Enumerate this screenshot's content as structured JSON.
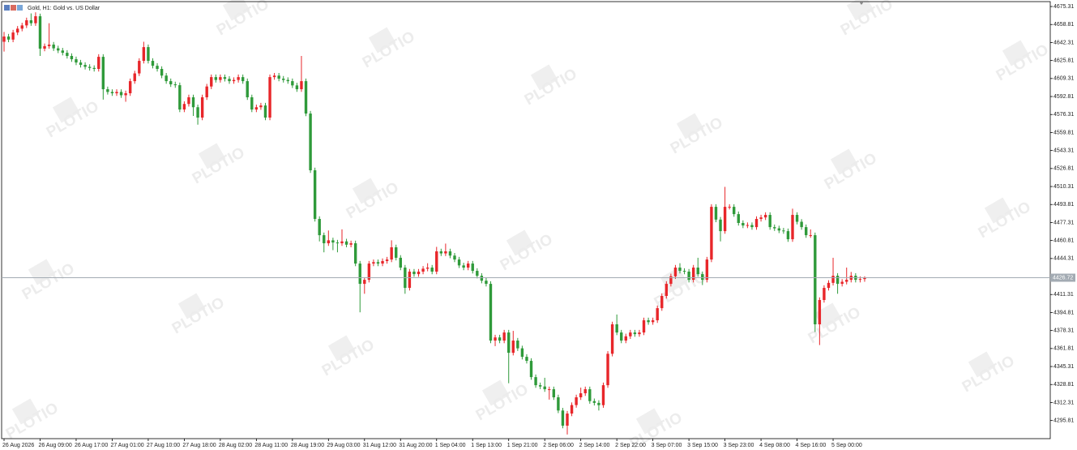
{
  "chart_data": {
    "type": "candlestick",
    "title": "Gold, H1:  Gold vs. US Dollar",
    "watermark": "PLOTIO",
    "categories": [
      "26 Aug 2026",
      null,
      null,
      null,
      null,
      null,
      null,
      null,
      "26 Aug 09:00",
      null,
      null,
      null,
      null,
      null,
      null,
      null,
      "26 Aug 17:00",
      null,
      null,
      null,
      null,
      null,
      null,
      null,
      "27 Aug 01:00",
      null,
      null,
      null,
      null,
      null,
      null,
      null,
      "27 Aug 10:00",
      null,
      null,
      null,
      null,
      null,
      null,
      null,
      "27 Aug 18:00",
      null,
      null,
      null,
      null,
      null,
      null,
      null,
      "28 Aug 02:00",
      null,
      null,
      null,
      null,
      null,
      null,
      null,
      "28 Aug 11:00",
      null,
      null,
      null,
      null,
      null,
      null,
      null,
      "28 Aug 19:00",
      null,
      null,
      null,
      null,
      null,
      null,
      null,
      "29 Aug 03:00",
      null,
      null,
      null,
      null,
      null,
      null,
      null,
      "31 Aug 12:00",
      null,
      null,
      null,
      null,
      null,
      null,
      null,
      "31 Aug 20:00",
      null,
      null,
      null,
      null,
      null,
      null,
      null,
      "1 Sep 04:00",
      null,
      null,
      null,
      null,
      null,
      null,
      null,
      "1 Sep 13:00",
      null,
      null,
      null,
      null,
      null,
      null,
      null,
      "1 Sep 21:00",
      null,
      null,
      null,
      null,
      null,
      null,
      null,
      "2 Sep 06:00",
      null,
      null,
      null,
      null,
      null,
      null,
      null,
      "2 Sep 14:00",
      null,
      null,
      null,
      null,
      null,
      null,
      null,
      "2 Sep 22:00",
      null,
      null,
      null,
      null,
      null,
      null,
      null,
      "3 Sep 07:00",
      null,
      null,
      null,
      null,
      null,
      null,
      null,
      "3 Sep 15:00",
      null,
      null,
      null,
      null,
      null,
      null,
      null,
      "3 Sep 23:00",
      null,
      null,
      null,
      null,
      null,
      null,
      null,
      "4 Sep 08:00",
      null,
      null,
      null,
      null,
      null,
      null,
      null,
      "4 Sep 16:00",
      null,
      null,
      null,
      null,
      null,
      null,
      null,
      "5 Sep 00:00",
      null,
      null,
      null,
      null,
      null,
      null,
      null
    ],
    "open": [
      4643,
      4647.8,
      4645,
      4651.5,
      4655,
      4658,
      4662.7,
      4660,
      4666.4,
      4636.7,
      4639,
      4640.4,
      4637,
      4635,
      4632.9,
      4630,
      4627,
      4624,
      4621.8,
      4620,
      4619,
      4618.1,
      4629.2,
      4599.5,
      4597,
      4595.8,
      4597,
      4594,
      4595.8,
      4606.9,
      4614,
      4625.5,
      4638.1,
      4625.5,
      4621,
      4618.1,
      4612,
      4606.9,
      4604,
      4603.2,
      4580.9,
      4586,
      4592.1,
      4583,
      4573.5,
      4592.1,
      4602,
      4610.6,
      4608,
      4610.6,
      4609,
      4606.9,
      4608,
      4610.6,
      4606.9,
      4592.1,
      4580.9,
      4583,
      4584.6,
      4573.5,
      4610.6,
      4612,
      4609.2,
      4608,
      4606.9,
      4603,
      4599.5,
      4606.9,
      4577.2,
      4525.2,
      4480.6,
      4465.7,
      4458.3,
      4461,
      4459,
      4458.3,
      4460,
      4457,
      4458.3,
      4439.7,
      4421.1,
      4424.8,
      4439.7,
      4441,
      4439.7,
      4442,
      4443.4,
      4454.6,
      4445,
      4436,
      4417.4,
      4432.3,
      4430,
      4432.3,
      4435,
      4436,
      4432.3,
      4450.9,
      4449,
      4450.9,
      4447,
      4443.4,
      4438,
      4436,
      4439.7,
      4433,
      4428.5,
      4424,
      4421.1,
      4369.1,
      4372,
      4369.1,
      4376.5,
      4357.9,
      4369.1,
      4362,
      4354.2,
      4350.5,
      4335.6,
      4328.2,
      4327,
      4324.5,
      4324.5,
      4317.1,
      4305,
      4291.1,
      4302.2,
      4310,
      4317.1,
      4320.8,
      4324.5,
      4313.6,
      4312,
      4309.9,
      4328.2,
      4357,
      4384,
      4376.5,
      4369.1,
      4373,
      4376.5,
      4375,
      4376.5,
      4387.7,
      4386,
      4387.7,
      4398.8,
      4410,
      4421.1,
      4428,
      4436,
      4433,
      4432.3,
      4424.8,
      4436,
      4430,
      4424.8,
      4443.4,
      4491.7,
      4480,
      4469.4,
      4491.7,
      4491.7,
      4485,
      4476.9,
      4474.6,
      4475,
      4473.1,
      4480.6,
      4482,
      4484.3,
      4473.1,
      4472,
      4470,
      4469.4,
      4462,
      4484.3,
      4478,
      4473.1,
      4465.7,
      4465.7,
      4384,
      4406.3,
      4417.4,
      4422,
      4428.5,
      4421.1,
      4423,
      4424.8,
      4428.5,
      4424.8,
      4425.5
    ],
    "high": [
      4652,
      4650.2,
      4653.9,
      4657.4,
      4660.4,
      4665.1,
      4669,
      4670,
      4668.8,
      4641.4,
      4660,
      4642.8,
      4639.4,
      4637.4,
      4635.3,
      4632.4,
      4629.4,
      4626.4,
      4624.2,
      4622.4,
      4621.4,
      4631.6,
      4631.6,
      4601.9,
      4599.4,
      4599.4,
      4599.4,
      4598.2,
      4609.3,
      4616.4,
      4627.9,
      4643,
      4640.5,
      4627.9,
      4623.4,
      4620.5,
      4614.4,
      4609.3,
      4606.4,
      4605.6,
      4588.4,
      4594.5,
      4594.5,
      4585.4,
      4594.5,
      4604.4,
      4613,
      4613,
      4613,
      4613,
      4611.4,
      4610.4,
      4613,
      4613,
      4609.3,
      4594.5,
      4585.4,
      4587,
      4587,
      4613,
      4614.4,
      4614.4,
      4611.6,
      4610.4,
      4609.3,
      4605.4,
      4630,
      4609.3,
      4579.6,
      4527.6,
      4483,
      4468.1,
      4470,
      4463.4,
      4461.4,
      4471,
      4462.4,
      4460.7,
      4460.7,
      4442.1,
      4427.2,
      4442.1,
      4443.4,
      4443.4,
      4444.4,
      4445.8,
      4461,
      4457,
      4447.4,
      4438.4,
      4434.7,
      4434.7,
      4434.7,
      4437.4,
      4440,
      4438.4,
      4455,
      4453.3,
      4458,
      4453.3,
      4449.4,
      4445.8,
      4440.4,
      4442.1,
      4442.1,
      4435.4,
      4430.9,
      4426.4,
      4423.5,
      4374.4,
      4374.4,
      4378.9,
      4378.9,
      4378,
      4371.5,
      4364.4,
      4356.6,
      4352.9,
      4338,
      4330.6,
      4335,
      4326.9,
      4326.9,
      4319.5,
      4307.4,
      4304.6,
      4312.4,
      4319.5,
      4326,
      4326.9,
      4326.9,
      4316,
      4314.4,
      4330.6,
      4359.4,
      4386.4,
      4393,
      4378.9,
      4375.4,
      4378.9,
      4378.9,
      4378.9,
      4390.1,
      4390.1,
      4390.1,
      4401.2,
      4412.4,
      4423.5,
      4430.4,
      4438.4,
      4440,
      4435.4,
      4434.7,
      4438.4,
      4445,
      4432.4,
      4445.8,
      4494.1,
      4494.1,
      4482.4,
      4510,
      4494.1,
      4494.1,
      4487.4,
      4479.3,
      4477.4,
      4477.4,
      4483,
      4484.4,
      4486.7,
      4486.7,
      4475.5,
      4474.4,
      4472.4,
      4471.8,
      4490,
      4486.7,
      4480.4,
      4475.5,
      4471,
      4468.1,
      4408.7,
      4419.8,
      4424.4,
      4445,
      4430.9,
      4425.4,
      4436,
      4432,
      4430.9,
      4427.9,
      4428
    ],
    "low": [
      4634,
      4642.6,
      4642.6,
      4649.1,
      4652.6,
      4655.6,
      4657.6,
      4657.6,
      4630,
      4634.3,
      4636.6,
      4634.6,
      4632.6,
      4630.5,
      4627.6,
      4624.6,
      4621.6,
      4619.4,
      4617.6,
      4616.6,
      4615.7,
      4615.7,
      4590,
      4594.6,
      4593.4,
      4593.4,
      4591.6,
      4588,
      4593.4,
      4604.5,
      4611.6,
      4623.1,
      4623.1,
      4618.6,
      4615.7,
      4609.6,
      4604.5,
      4601.6,
      4600.8,
      4578.5,
      4578.5,
      4583.6,
      4575,
      4567,
      4571.1,
      4589.7,
      4599.6,
      4605.6,
      4605.6,
      4606.6,
      4604.5,
      4604.5,
      4605.6,
      4604.5,
      4589.7,
      4578.5,
      4578.5,
      4580.6,
      4571.1,
      4571.1,
      4608.2,
      4606.8,
      4605.6,
      4604.5,
      4600.6,
      4597.1,
      4597.1,
      4574.8,
      4522.8,
      4478.2,
      4460,
      4450,
      4455.9,
      4452,
      4450,
      4455.9,
      4454.6,
      4454.6,
      4437.3,
      4395,
      4412,
      4422.4,
      4437.3,
      4437.3,
      4437.3,
      4439.6,
      4441,
      4442.6,
      4433.6,
      4412,
      4415,
      4427.6,
      4427.6,
      4429.9,
      4432.6,
      4429.9,
      4429.9,
      4446.6,
      4446.6,
      4444.6,
      4441,
      4435.6,
      4433.6,
      4433.6,
      4430.6,
      4426.1,
      4421.6,
      4418.7,
      4366.7,
      4364,
      4366.7,
      4366.7,
      4330,
      4355.5,
      4359.6,
      4351.8,
      4348.1,
      4333.2,
      4325.8,
      4324.6,
      4322.1,
      4315,
      4314.7,
      4302.6,
      4288.7,
      4283,
      4299.8,
      4307.6,
      4314.7,
      4318.4,
      4311.2,
      4309.6,
      4305,
      4307.5,
      4325.8,
      4354.6,
      4374.1,
      4366.7,
      4366.7,
      4370.6,
      4372.6,
      4372.6,
      4374.1,
      4383.6,
      4383.6,
      4385.3,
      4396.4,
      4407.6,
      4418.7,
      4425.6,
      4430.6,
      4429.9,
      4422.4,
      4422.4,
      4427.6,
      4420,
      4422.4,
      4441,
      4477.6,
      4460,
      4467,
      4489.3,
      4482.6,
      4474.5,
      4472.2,
      4472.2,
      4470.7,
      4470.7,
      4478.2,
      4479.6,
      4470.7,
      4469.6,
      4467.6,
      4467,
      4459.6,
      4459.6,
      4475.6,
      4470.7,
      4463.3,
      4463.3,
      4377,
      4365,
      4403.9,
      4415,
      4419.6,
      4412,
      4418.7,
      4420.6,
      4422.4,
      4422.4,
      4422.4,
      4423
    ],
    "close": [
      4647.8,
      4645,
      4651.5,
      4655,
      4658,
      4662.7,
      4660,
      4666.4,
      4636.7,
      4639,
      4640.4,
      4637,
      4635,
      4632.9,
      4630,
      4627,
      4624,
      4621.8,
      4620,
      4619,
      4618.1,
      4629.2,
      4599.5,
      4597,
      4595.8,
      4597,
      4594,
      4595.8,
      4606.9,
      4614,
      4625.5,
      4638.1,
      4625.5,
      4621,
      4618.1,
      4612,
      4606.9,
      4604,
      4603.2,
      4580.9,
      4586,
      4592.1,
      4583,
      4573.5,
      4592.1,
      4602,
      4610.6,
      4608,
      4610.6,
      4609,
      4606.9,
      4608,
      4610.6,
      4606.9,
      4592.1,
      4580.9,
      4583,
      4584.6,
      4573.5,
      4610.6,
      4612,
      4609.2,
      4608,
      4606.9,
      4603,
      4599.5,
      4606.9,
      4577.2,
      4525.2,
      4480.6,
      4465.7,
      4458.3,
      4461,
      4459,
      4458.3,
      4460,
      4457,
      4458.3,
      4439.7,
      4421.1,
      4424.8,
      4439.7,
      4441,
      4439.7,
      4442,
      4443.4,
      4454.6,
      4445,
      4436,
      4417.4,
      4432.3,
      4430,
      4432.3,
      4435,
      4436,
      4432.3,
      4450.9,
      4449,
      4450.9,
      4447,
      4443.4,
      4438,
      4436,
      4439.7,
      4433,
      4428.5,
      4424,
      4421.1,
      4369.1,
      4372,
      4369.1,
      4376.5,
      4357.9,
      4369.1,
      4362,
      4354.2,
      4350.5,
      4335.6,
      4328.2,
      4327,
      4324.5,
      4324.5,
      4317.1,
      4305,
      4291.1,
      4302.2,
      4310,
      4317.1,
      4320.8,
      4324.5,
      4313.6,
      4312,
      4309.9,
      4328.2,
      4357,
      4384,
      4376.5,
      4369.1,
      4373,
      4376.5,
      4375,
      4376.5,
      4387.7,
      4386,
      4387.7,
      4398.8,
      4410,
      4421.1,
      4428,
      4436,
      4433,
      4432.3,
      4424.8,
      4436,
      4430,
      4424.8,
      4443.4,
      4491.7,
      4480,
      4469.4,
      4491.7,
      4491.7,
      4485,
      4476.9,
      4474.6,
      4475,
      4473.1,
      4480.6,
      4482,
      4484.3,
      4473.1,
      4472,
      4470,
      4469.4,
      4462,
      4484.3,
      4478,
      4473.1,
      4465.7,
      4465.7,
      4384,
      4406.3,
      4417.4,
      4422,
      4428.5,
      4421.1,
      4423,
      4424.8,
      4428.5,
      4424.8,
      4425.5,
      4426.72
    ],
    "up_color": "#e8262a",
    "down_color": "#2f9a3a",
    "last_price": 4426.72,
    "last_price_color": "#a3abb3",
    "ylim": [
      4279.2,
      4679.8
    ],
    "yticks": [
      4675.31,
      4658.81,
      4642.31,
      4625.81,
      4609.31,
      4592.81,
      4576.31,
      4559.81,
      4543.31,
      4526.81,
      4510.31,
      4493.81,
      4477.31,
      4460.81,
      4444.31,
      4411.31,
      4394.81,
      4378.31,
      4361.81,
      4345.31,
      4328.81,
      4312.31,
      4295.81
    ]
  }
}
